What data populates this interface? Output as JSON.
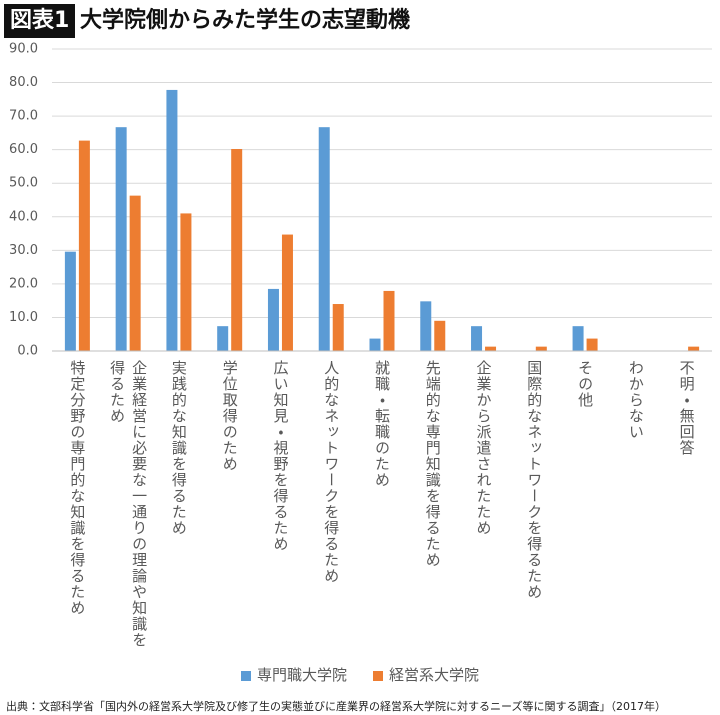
{
  "chart_data": {
    "type": "bar",
    "label": "図表1",
    "title": "大学院側からみた学生の志望動機",
    "source": "出典：文部科学省「国内外の経営系大学院及び修了生の実態並びに産業界の経営系大学院に対するニーズ等に関する調査」（2017年）",
    "categories": [
      "特定分野の専門的な知識を得るため",
      "企業経営に必要な一通りの理論や知識を\n得るため",
      "実践的な知識を得るため",
      "学位取得のため",
      "広い知見・視野を得るため",
      "人的なネットワークを得るため",
      "就職・転職のため",
      "先端的な専門知識を得るため",
      "企業から派遣されたため",
      "国際的なネットワークを得るため",
      "その他",
      "わからない",
      "不明・無回答"
    ],
    "series": [
      {
        "name": "専門職大学院",
        "color": "#5b9bd5",
        "values": [
          29.6,
          66.7,
          77.8,
          7.4,
          18.5,
          66.7,
          3.7,
          14.8,
          7.4,
          0,
          7.4,
          0,
          0
        ]
      },
      {
        "name": "経営系大学院",
        "color": "#ed7d31",
        "values": [
          62.7,
          46.3,
          41.0,
          60.2,
          34.7,
          14.0,
          17.9,
          9.0,
          1.3,
          1.3,
          3.7,
          0,
          1.3
        ]
      }
    ],
    "ylim": [
      0,
      90
    ],
    "yticks": [
      {
        "value": 0,
        "label": "0.0"
      },
      {
        "value": 10,
        "label": "10.0"
      },
      {
        "value": 20,
        "label": "20.0"
      },
      {
        "value": 30,
        "label": "30.0"
      },
      {
        "value": 40,
        "label": "40.0"
      },
      {
        "value": 50,
        "label": "50.0"
      },
      {
        "value": 60,
        "label": "60.0"
      },
      {
        "value": 70,
        "label": "70.0"
      },
      {
        "value": 80,
        "label": "80.0"
      },
      {
        "value": 90,
        "label": "90.0"
      }
    ],
    "grid": true
  }
}
